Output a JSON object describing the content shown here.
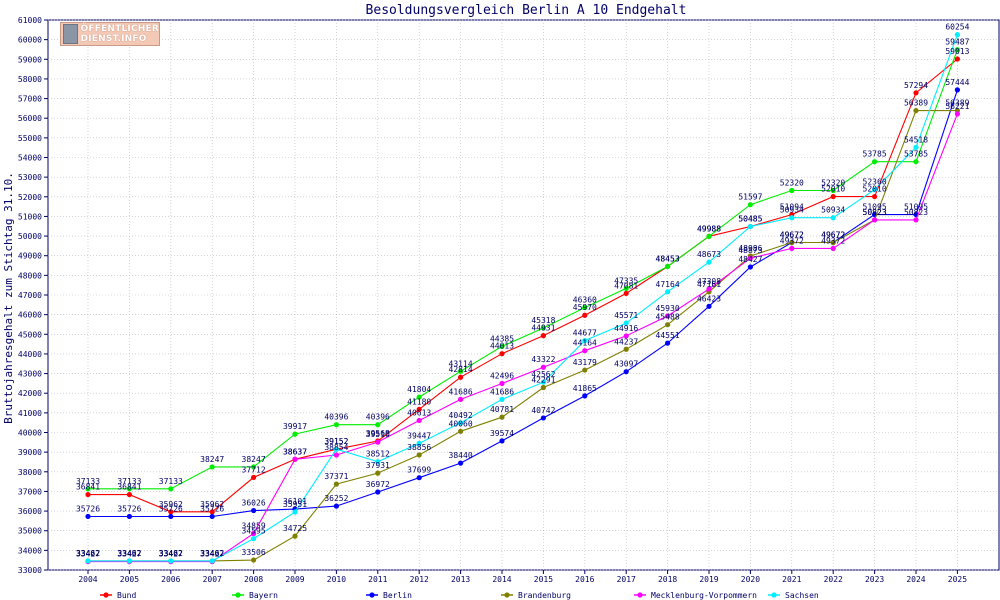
{
  "logo": {
    "line1": "ÖFFENTLICHER",
    "line2": "DIENST.INFO"
  },
  "chart_data": {
    "type": "line",
    "title": "Besoldungsvergleich Berlin A 10 Endgehalt",
    "xlabel": "",
    "ylabel": "Bruttojahresgehalt zum Stichtag 31.10.",
    "ylim": [
      33000,
      61000
    ],
    "ytick_step": 1000,
    "grid": true,
    "legend_position": "bottom",
    "categories": [
      "2004",
      "2005",
      "2006",
      "2007",
      "2008",
      "2009",
      "2010",
      "2011",
      "2012",
      "2013",
      "2014",
      "2015",
      "2016",
      "2017",
      "2018",
      "2019",
      "2020",
      "2021",
      "2022",
      "2023",
      "2024",
      "2025"
    ],
    "series": [
      {
        "name": "Bund",
        "color": "#ff0000",
        "values": [
          36841,
          36841,
          35962,
          35962,
          37712,
          38637,
          39152,
          39568,
          41180,
          42814,
          44013,
          44931,
          45970,
          47081,
          48453,
          49988,
          50485,
          51094,
          52010,
          52010,
          57294,
          59013
        ]
      },
      {
        "name": "Bayern",
        "color": "#00ee00",
        "values": [
          37133,
          37133,
          37133,
          38247,
          38247,
          39917,
          40396,
          40396,
          41804,
          43114,
          44385,
          45318,
          46360,
          47335,
          48453,
          49988,
          51597,
          52320,
          52320,
          53785,
          53785,
          59487
        ]
      },
      {
        "name": "Berlin",
        "color": "#0000ff",
        "values": [
          35726,
          35726,
          35726,
          35726,
          36026,
          36101,
          36252,
          36972,
          37699,
          38440,
          39574,
          40742,
          41865,
          43097,
          44551,
          46423,
          48427,
          49672,
          49672,
          51095,
          51095,
          57444
        ]
      },
      {
        "name": "Brandenburg",
        "color": "#808000",
        "values": [
          33462,
          33462,
          33462,
          33462,
          33506,
          34725,
          37371,
          37931,
          38856,
          40060,
          40781,
          42291,
          43179,
          44237,
          45488,
          47161,
          48986,
          49672,
          49672,
          50823,
          56389,
          56389
        ]
      },
      {
        "name": "Mecklenburg-Vorpommern",
        "color": "#ff00ff",
        "values": [
          33427,
          33427,
          33427,
          33427,
          34859,
          38637,
          38854,
          39510,
          40613,
          41686,
          42496,
          43322,
          44164,
          44916,
          45930,
          47308,
          48873,
          49372,
          49372,
          50823,
          50823,
          56221
        ]
      },
      {
        "name": "Sachsen",
        "color": "#00eeff",
        "values": [
          33462,
          33462,
          33462,
          33462,
          34595,
          35951,
          39152,
          38512,
          39447,
          40492,
          41686,
          42562,
          44677,
          45571,
          47164,
          48673,
          50485,
          50934,
          50934,
          52360,
          54518,
          60254
        ]
      }
    ]
  }
}
